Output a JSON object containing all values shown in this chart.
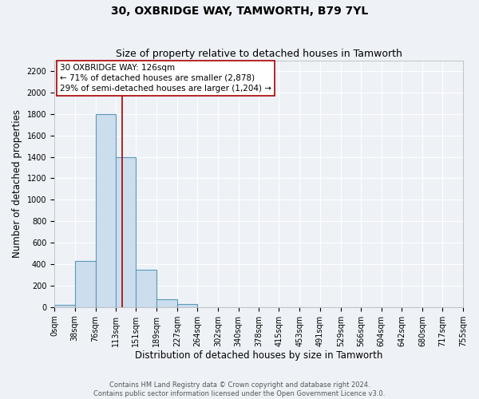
{
  "title": "30, OXBRIDGE WAY, TAMWORTH, B79 7YL",
  "subtitle": "Size of property relative to detached houses in Tamworth",
  "xlabel": "Distribution of detached houses by size in Tamworth",
  "ylabel": "Number of detached properties",
  "bin_labels": [
    "0sqm",
    "38sqm",
    "76sqm",
    "113sqm",
    "151sqm",
    "189sqm",
    "227sqm",
    "264sqm",
    "302sqm",
    "340sqm",
    "378sqm",
    "415sqm",
    "453sqm",
    "491sqm",
    "529sqm",
    "566sqm",
    "604sqm",
    "642sqm",
    "680sqm",
    "717sqm",
    "755sqm"
  ],
  "bin_edges": [
    0,
    38,
    76,
    113,
    151,
    189,
    227,
    264,
    302,
    340,
    378,
    415,
    453,
    491,
    529,
    566,
    604,
    642,
    680,
    717,
    755
  ],
  "bar_heights": [
    20,
    430,
    1800,
    1400,
    350,
    75,
    25,
    0,
    0,
    0,
    0,
    0,
    0,
    0,
    0,
    0,
    0,
    0,
    0,
    0
  ],
  "bar_color": "#ccdded",
  "bar_edge_color": "#5a9aba",
  "property_line_x": 126,
  "property_line_color": "#aa0000",
  "annotation_text": "30 OXBRIDGE WAY: 126sqm\n← 71% of detached houses are smaller (2,878)\n29% of semi-detached houses are larger (1,204) →",
  "annotation_box_color": "white",
  "annotation_box_edge_color": "#aa0000",
  "ylim": [
    0,
    2300
  ],
  "yticks": [
    0,
    200,
    400,
    600,
    800,
    1000,
    1200,
    1400,
    1600,
    1800,
    2000,
    2200
  ],
  "background_color": "#eef2f7",
  "grid_color": "#ffffff",
  "footer_line1": "Contains HM Land Registry data © Crown copyright and database right 2024.",
  "footer_line2": "Contains public sector information licensed under the Open Government Licence v3.0.",
  "title_fontsize": 10,
  "subtitle_fontsize": 9,
  "axis_label_fontsize": 8.5,
  "tick_fontsize": 7,
  "annotation_fontsize": 7.5
}
